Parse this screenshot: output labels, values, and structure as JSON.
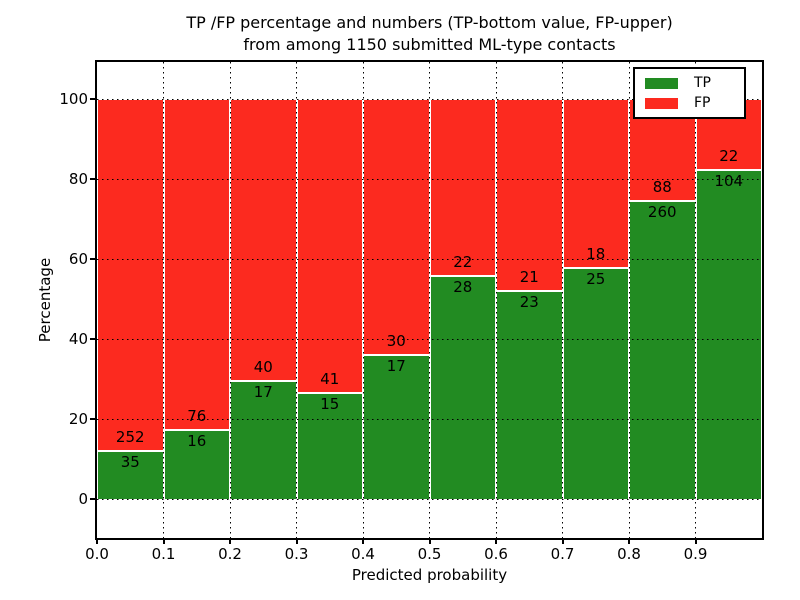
{
  "figure": {
    "title_line1": "TP /FP percentage and numbers (TP-bottom value, FP-upper)",
    "title_line2": "from among 1150 submitted ML-type contacts"
  },
  "axes": {
    "xlabel": "Predicted probability",
    "ylabel": "Percentage",
    "xticklabels": [
      "0.0",
      "0.1",
      "0.2",
      "0.3",
      "0.4",
      "0.5",
      "0.6",
      "0.7",
      "0.8",
      "0.9"
    ],
    "yticks": [
      0,
      20,
      40,
      60,
      80,
      100
    ]
  },
  "legend": {
    "items": [
      {
        "label": "TP",
        "color": "#228b22"
      },
      {
        "label": "FP",
        "color": "#fc2a1f"
      }
    ]
  },
  "colors": {
    "tp": "#228b22",
    "fp": "#fc2a1f",
    "frame": "#000000",
    "background": "#ffffff"
  },
  "chart_data": {
    "type": "bar",
    "stacked": true,
    "normalized": "each bin stacks to 100%",
    "title": "TP /FP percentage and numbers (TP-bottom value, FP-upper) from among 1150 submitted ML-type contacts",
    "xlabel": "Predicted probability",
    "ylabel": "Percentage",
    "x_bin_edges": [
      0.0,
      0.1,
      0.2,
      0.3,
      0.4,
      0.5,
      0.6,
      0.7,
      0.8,
      0.9,
      1.0
    ],
    "yticks": [
      0,
      20,
      40,
      60,
      80,
      100
    ],
    "ylim_display": [
      -9.5,
      109.5
    ],
    "grid": "dotted black, vertical at every 0.1 and horizontal at every 20",
    "legend_position": "upper right",
    "total_contacts": 1150,
    "series": [
      {
        "name": "TP",
        "color": "#228b22",
        "counts": [
          35,
          16,
          17,
          15,
          17,
          28,
          23,
          25,
          260,
          104
        ],
        "percent": [
          12.2,
          17.4,
          29.8,
          26.8,
          36.2,
          56.0,
          52.3,
          58.1,
          74.7,
          82.5
        ]
      },
      {
        "name": "FP",
        "color": "#fc2a1f",
        "counts": [
          252,
          76,
          40,
          41,
          30,
          22,
          21,
          18,
          88,
          22
        ],
        "percent": [
          87.8,
          82.6,
          70.2,
          73.2,
          63.8,
          44.0,
          47.7,
          41.9,
          25.3,
          17.5
        ]
      }
    ]
  }
}
